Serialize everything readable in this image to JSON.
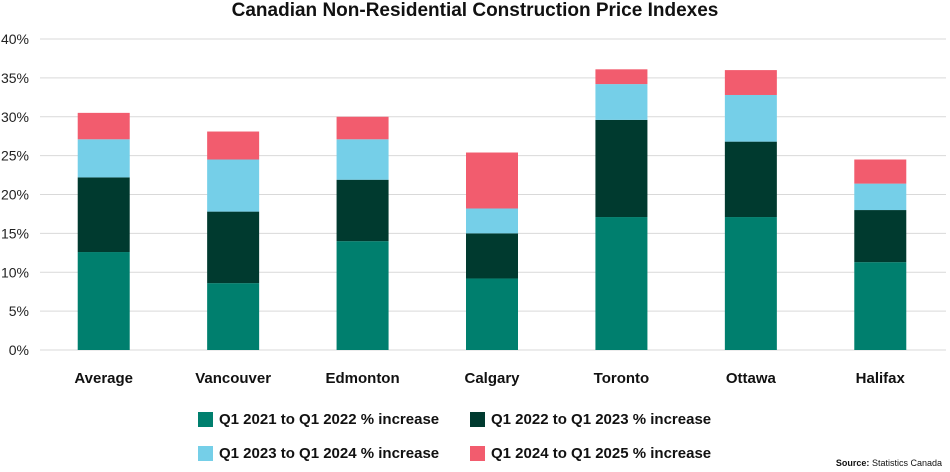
{
  "chart_data": {
    "type": "bar",
    "stacked": true,
    "title": "Canadian Non-Residential Construction Price Indexes",
    "categories": [
      "Average",
      "Vancouver",
      "Edmonton",
      "Calgary",
      "Toronto",
      "Ottawa",
      "Halifax"
    ],
    "series": [
      {
        "name": "Q1 2021 to Q1 2022 % increase",
        "color": "#007f6e",
        "values": [
          12.6,
          8.6,
          14.0,
          9.2,
          17.1,
          17.1,
          11.3
        ]
      },
      {
        "name": "Q1 2022 to Q1 2023 % increase",
        "color": "#003a2f",
        "values": [
          9.6,
          9.2,
          7.9,
          5.8,
          12.5,
          9.7,
          6.7
        ]
      },
      {
        "name": "Q1 2023 to Q1 2024 % increase",
        "color": "#75cfe8",
        "values": [
          4.9,
          6.7,
          5.2,
          3.2,
          4.6,
          6.0,
          3.4
        ]
      },
      {
        "name": "Q1 2024 to Q1 2025 % increase",
        "color": "#f25c6e",
        "values": [
          3.4,
          3.6,
          2.9,
          7.2,
          1.9,
          3.2,
          3.1
        ]
      }
    ],
    "yticks": [
      "0%",
      "5%",
      "10%",
      "15%",
      "20%",
      "25%",
      "30%",
      "35%",
      "40%"
    ],
    "ylim": [
      0,
      40
    ],
    "grid": true,
    "legend_position": "bottom"
  },
  "source": {
    "label": "Source:",
    "text": "Statistics Canada"
  }
}
